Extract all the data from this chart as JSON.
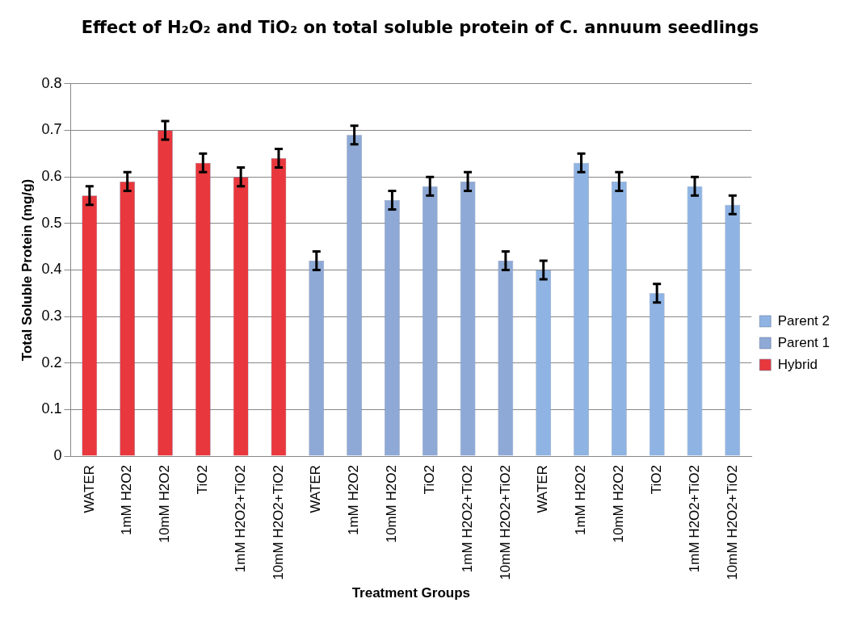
{
  "chart_data": {
    "type": "bar",
    "title": "Effect of H₂O₂ and TiO₂ on total soluble protein of C. annuum seedlings",
    "xlabel": "Treatment Groups",
    "ylabel": "Total Soluble Protein (mg/g)",
    "categories": [
      "WATER",
      "1mM H2O2",
      "10mM H2O2",
      "TiO2",
      "1mM H2O2+TiO2",
      "10mM H2O2+TiO2",
      "WATER",
      "1mM H2O2",
      "10mM H2O2",
      "TiO2",
      "1mM H2O2+TiO2",
      "10mM H2O2+TiO2",
      "WATER",
      "1mM H2O2",
      "10mM H2O2",
      "TiO2",
      "1mM H2O2+TiO2",
      "10mM H2O2+TiO2"
    ],
    "series": [
      {
        "name": "Hybrid",
        "color": "#e8383d",
        "values": [
          0.56,
          0.59,
          0.7,
          0.63,
          0.6,
          0.64,
          null,
          null,
          null,
          null,
          null,
          null,
          null,
          null,
          null,
          null,
          null,
          null
        ],
        "errors": [
          0.02,
          0.02,
          0.02,
          0.02,
          0.02,
          0.02,
          null,
          null,
          null,
          null,
          null,
          null,
          null,
          null,
          null,
          null,
          null,
          null
        ]
      },
      {
        "name": "Parent 1",
        "color": "#8fa9d6",
        "values": [
          null,
          null,
          null,
          null,
          null,
          null,
          0.42,
          0.69,
          0.55,
          0.58,
          0.59,
          0.42,
          null,
          null,
          null,
          null,
          null,
          null
        ],
        "errors": [
          null,
          null,
          null,
          null,
          null,
          null,
          0.02,
          0.02,
          0.02,
          0.02,
          0.02,
          0.02,
          null,
          null,
          null,
          null,
          null,
          null
        ]
      },
      {
        "name": "Parent 2",
        "color": "#8fb4e3",
        "values": [
          null,
          null,
          null,
          null,
          null,
          null,
          null,
          null,
          null,
          null,
          null,
          null,
          0.4,
          0.63,
          0.59,
          0.35,
          0.58,
          0.54
        ],
        "errors": [
          null,
          null,
          null,
          null,
          null,
          null,
          null,
          null,
          null,
          null,
          null,
          null,
          0.02,
          0.02,
          0.02,
          0.02,
          0.02,
          0.02
        ]
      }
    ],
    "ylim": [
      0,
      0.8
    ],
    "yticks": [
      0,
      0.1,
      0.2,
      0.3,
      0.4,
      0.5,
      0.6,
      0.7,
      0.8
    ],
    "grid": "y",
    "legend": "right"
  }
}
